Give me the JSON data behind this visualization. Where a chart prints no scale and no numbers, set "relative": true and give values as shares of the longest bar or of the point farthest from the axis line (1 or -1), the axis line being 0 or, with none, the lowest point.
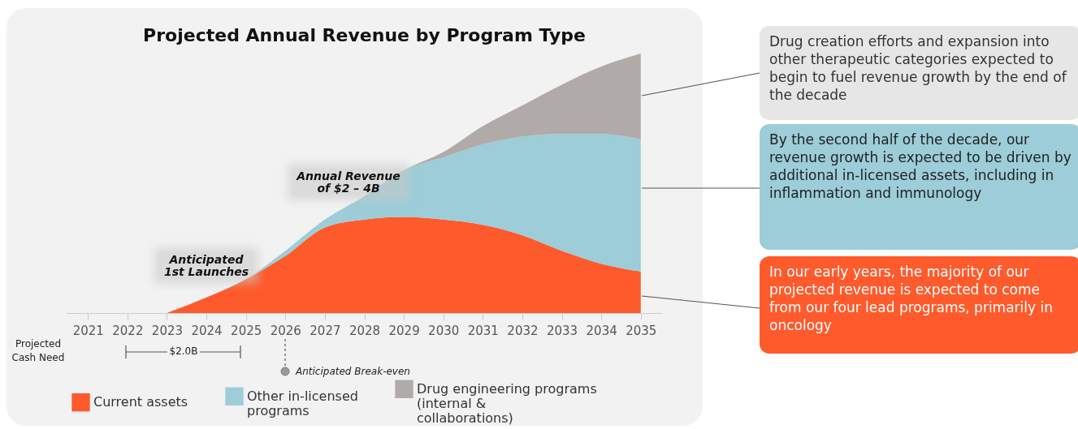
{
  "chart_data": {
    "type": "area",
    "title": "Projected Annual Revenue by Program Type",
    "relative": true,
    "stacked": true,
    "legend": "bottom",
    "grid": false,
    "categories": [
      "2021",
      "2022",
      "2023",
      "2024",
      "2025",
      "2026",
      "2027",
      "2028",
      "2029",
      "2030",
      "2031",
      "2032",
      "2033",
      "2034",
      "2035"
    ],
    "series": [
      {
        "name": "Current assets",
        "color": "#ff5a2c",
        "values": [
          null,
          null,
          0,
          0.06,
          0.13,
          0.22,
          0.33,
          0.36,
          0.37,
          0.36,
          0.34,
          0.3,
          0.24,
          0.19,
          0.16
        ]
      },
      {
        "name": "Other in-licensed programs",
        "color": "#9ccdd8",
        "values": [
          null,
          null,
          0,
          0,
          0,
          0.02,
          0.03,
          0.09,
          0.18,
          0.24,
          0.31,
          0.38,
          0.45,
          0.5,
          0.51
        ]
      },
      {
        "name": "Drug engineering programs (internal & collaborations)",
        "color": "#b0aaa8",
        "values": [
          null,
          null,
          0,
          0,
          0,
          0,
          0,
          0,
          0,
          0.02,
          0.07,
          0.12,
          0.19,
          0.26,
          0.33
        ]
      }
    ],
    "annotations": [
      "Anticipated 1st Launches",
      "Annual Revenue of $2 – 4B",
      "Drug creation efforts and expansion into other therapeutic categories expected to begin to fuel revenue growth by the end of the decade",
      "By the second half of the decade, our revenue growth is expected to be driven by additional in-licensed assets, including in inflammation and immunology",
      "In our early years, the majority of our projected revenue is expected to come from our four lead programs, primarily in oncology",
      "Projected Cash Need",
      "$2.0B",
      "Anticipated Break-even"
    ]
  }
}
